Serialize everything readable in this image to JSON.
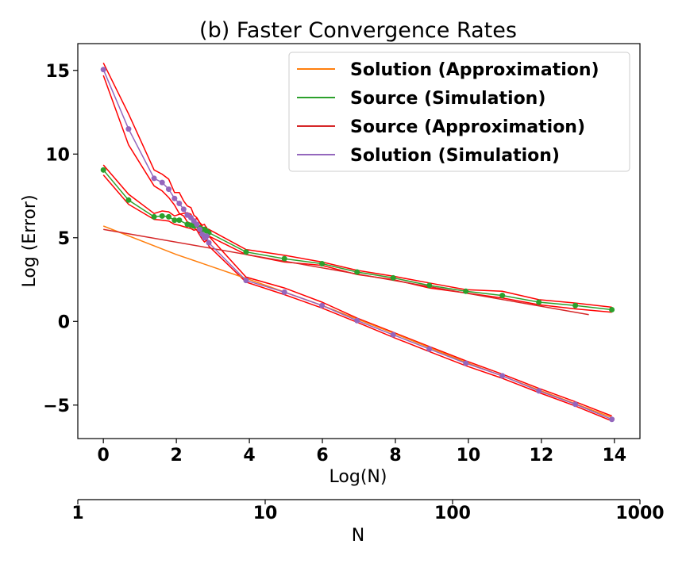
{
  "chart_data": {
    "type": "line",
    "title": "(b) Faster Convergence Rates",
    "xlabel": "Log(N)",
    "ylabel": "Log (Error)",
    "xlim": [
      -0.7,
      14.7
    ],
    "ylim": [
      -7.0,
      16.6
    ],
    "x_ticks": [
      0,
      2,
      4,
      6,
      8,
      10,
      12,
      14
    ],
    "y_ticks": [
      -5,
      0,
      5,
      10,
      15
    ],
    "y_tick_labels": [
      "−5",
      "0",
      "5",
      "10",
      "15"
    ],
    "secondary_axis": {
      "label": "N",
      "scale": "log",
      "ticks": [
        1,
        10,
        100,
        1000
      ],
      "tick_labels": [
        "1",
        "10",
        "100",
        "1000"
      ],
      "range": [
        1,
        1000
      ]
    },
    "grid": false,
    "legend_position": "top-right",
    "legend": [
      {
        "label": "Solution (Approximation)",
        "color": "#ff7f0e"
      },
      {
        "label": "Source (Simulation)",
        "color": "#2ca02c"
      },
      {
        "label": "Source (Approximation)",
        "color": "#d62728"
      },
      {
        "label": "Solution (Simulation)",
        "color": "#9467bd"
      }
    ],
    "series": [
      {
        "name": "Solution (Approximation)",
        "color": "#ff7f0e",
        "markers": false,
        "x": [
          0,
          2,
          4,
          6,
          8,
          10,
          12,
          14
        ],
        "y": [
          5.7,
          4.0,
          2.5,
          0.95,
          -0.75,
          -2.5,
          -4.15,
          -5.8
        ]
      },
      {
        "name": "Source (Simulation)",
        "color": "#2ca02c",
        "markers": true,
        "x": [
          0,
          0.69,
          1.39,
          1.61,
          1.79,
          1.95,
          2.08,
          2.3,
          2.4,
          2.48,
          2.56,
          2.64,
          2.71,
          2.77,
          2.83,
          2.89,
          3.91,
          4.96,
          5.99,
          6.95,
          7.94,
          8.93,
          9.93,
          10.93,
          11.93,
          12.93,
          13.93
        ],
        "y": [
          9.05,
          7.25,
          6.25,
          6.3,
          6.25,
          6.05,
          6.05,
          5.8,
          5.75,
          5.7,
          5.75,
          5.6,
          5.5,
          5.5,
          5.4,
          5.3,
          4.15,
          3.75,
          3.45,
          2.95,
          2.6,
          2.15,
          1.8,
          1.55,
          1.15,
          0.95,
          0.7
        ]
      },
      {
        "name": "Source (Approximation)",
        "color": "#d62728",
        "markers": false,
        "x": [
          0,
          13.3
        ],
        "y": [
          5.5,
          0.4
        ]
      },
      {
        "name": "Solution (Simulation)",
        "color": "#9467bd",
        "markers": true,
        "x": [
          0,
          0.69,
          1.39,
          1.61,
          1.79,
          1.95,
          2.08,
          2.2,
          2.3,
          2.4,
          2.48,
          2.56,
          2.64,
          2.71,
          2.77,
          2.83,
          2.89,
          3.91,
          4.96,
          5.99,
          6.95,
          7.94,
          8.93,
          9.93,
          10.93,
          11.93,
          12.93,
          13.93
        ],
        "y": [
          15.05,
          11.5,
          8.55,
          8.3,
          7.9,
          7.35,
          7.05,
          6.7,
          6.35,
          6.2,
          6.0,
          5.8,
          5.5,
          5.2,
          5.0,
          5.1,
          4.7,
          2.45,
          1.75,
          0.95,
          0.05,
          -0.8,
          -1.65,
          -2.5,
          -3.25,
          -4.15,
          -4.95,
          -5.85
        ]
      }
    ],
    "bands": [
      {
        "for": "Source (Simulation)",
        "color": "#ff0000",
        "upper": {
          "x": [
            0,
            0.69,
            1.39,
            1.61,
            1.79,
            1.95,
            2.08,
            2.3,
            2.4,
            2.48,
            2.56,
            2.64,
            2.71,
            2.77,
            2.83,
            2.89,
            3.91,
            4.96,
            5.99,
            6.95,
            7.94,
            8.93,
            9.93,
            10.93,
            11.93,
            12.93,
            13.93
          ],
          "y": [
            9.35,
            7.6,
            6.45,
            6.6,
            6.55,
            6.3,
            6.4,
            6.5,
            6.4,
            6.05,
            6.15,
            5.9,
            5.75,
            5.8,
            5.55,
            5.5,
            4.3,
            3.95,
            3.55,
            3.05,
            2.7,
            2.3,
            1.9,
            1.8,
            1.3,
            1.1,
            0.85
          ]
        },
        "lower": {
          "x": [
            0,
            0.69,
            1.39,
            1.61,
            1.79,
            1.95,
            2.08,
            2.3,
            2.4,
            2.48,
            2.56,
            2.64,
            2.71,
            2.77,
            2.83,
            2.89,
            3.91,
            4.96,
            5.99,
            6.95,
            7.94,
            8.93,
            9.93,
            10.93,
            11.93,
            12.93,
            13.93
          ],
          "y": [
            8.75,
            7.0,
            6.1,
            6.05,
            6.0,
            5.8,
            5.75,
            5.6,
            5.55,
            5.45,
            5.5,
            5.3,
            5.3,
            5.2,
            5.15,
            5.1,
            4.0,
            3.55,
            3.35,
            2.8,
            2.5,
            2.0,
            1.7,
            1.4,
            1.0,
            0.75,
            0.55
          ]
        }
      },
      {
        "for": "Solution (Simulation)",
        "color": "#ff0000",
        "upper": {
          "x": [
            0,
            0.69,
            1.39,
            1.61,
            1.79,
            1.95,
            2.08,
            2.2,
            2.3,
            2.4,
            2.48,
            2.56,
            2.64,
            2.71,
            2.77,
            2.83,
            2.89,
            3.91,
            4.96,
            5.99,
            6.95,
            7.94,
            8.93,
            9.93,
            10.93,
            11.93,
            12.93,
            13.93
          ],
          "y": [
            15.45,
            12.4,
            9.05,
            8.8,
            8.5,
            7.7,
            7.7,
            7.2,
            6.9,
            6.8,
            6.35,
            6.2,
            5.9,
            5.65,
            5.4,
            5.6,
            5.1,
            2.65,
            2.0,
            1.15,
            0.2,
            -0.65,
            -1.5,
            -2.35,
            -3.15,
            -4.0,
            -4.8,
            -5.65
          ]
        },
        "lower": {
          "x": [
            0,
            0.69,
            1.39,
            1.61,
            1.79,
            1.95,
            2.08,
            2.2,
            2.3,
            2.4,
            2.48,
            2.56,
            2.64,
            2.71,
            2.77,
            2.83,
            2.89,
            3.91,
            4.96,
            5.99,
            6.95,
            7.94,
            8.93,
            9.93,
            10.93,
            11.93,
            12.93,
            13.93
          ],
          "y": [
            14.7,
            10.55,
            8.1,
            7.8,
            7.4,
            6.95,
            6.45,
            6.3,
            5.95,
            5.85,
            5.6,
            5.45,
            5.15,
            4.9,
            4.75,
            4.85,
            4.5,
            2.35,
            1.6,
            0.8,
            -0.05,
            -0.95,
            -1.8,
            -2.65,
            -3.4,
            -4.25,
            -5.05,
            -5.95
          ]
        }
      }
    ]
  }
}
